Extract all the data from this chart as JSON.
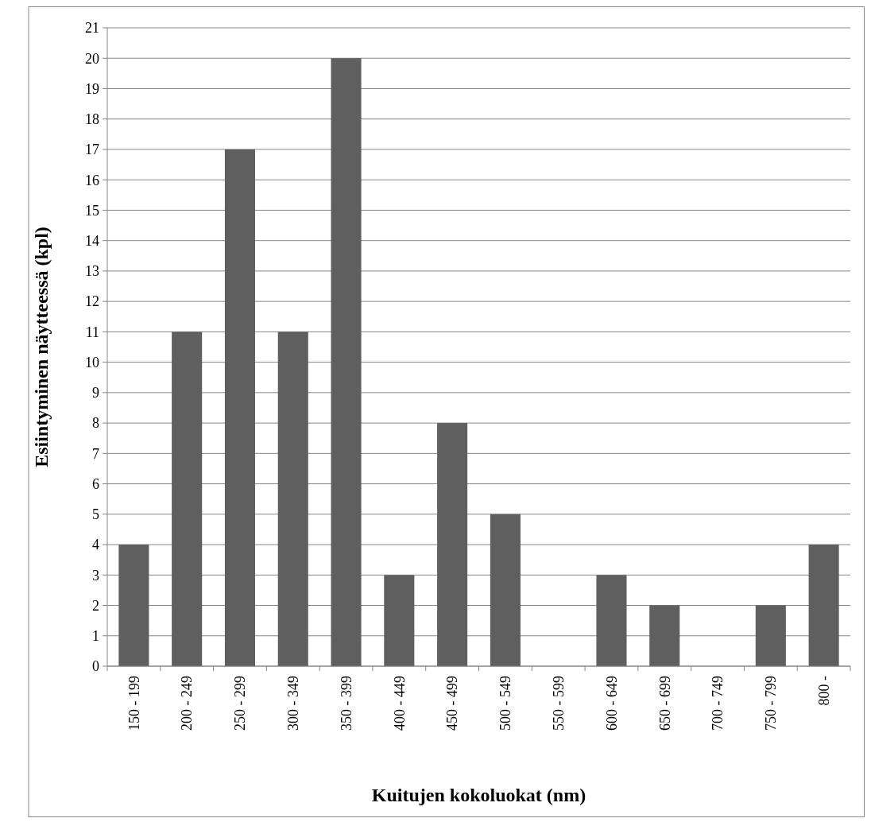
{
  "chart_data": {
    "type": "bar",
    "xlabel": "Kuitujen kokoluokat (nm)",
    "ylabel": "Esiintyminen näytteessä (kpl)",
    "categories": [
      "150 - 199",
      "200 - 249",
      "250 - 299",
      "300 - 349",
      "350 - 399",
      "400 - 449",
      "450 - 499",
      "500 - 549",
      "550 - 599",
      "600 - 649",
      "650 - 699",
      "700 - 749",
      "750 - 799",
      "800 -"
    ],
    "values": [
      4,
      11,
      17,
      11,
      20,
      3,
      8,
      5,
      0,
      3,
      2,
      0,
      2,
      4
    ],
    "color": "#5f5f5f",
    "ylim": [
      0,
      21
    ],
    "yticks": [
      0,
      1,
      2,
      3,
      4,
      5,
      6,
      7,
      8,
      9,
      10,
      11,
      12,
      13,
      14,
      15,
      16,
      17,
      18,
      19,
      20,
      21
    ],
    "grid": "y"
  }
}
